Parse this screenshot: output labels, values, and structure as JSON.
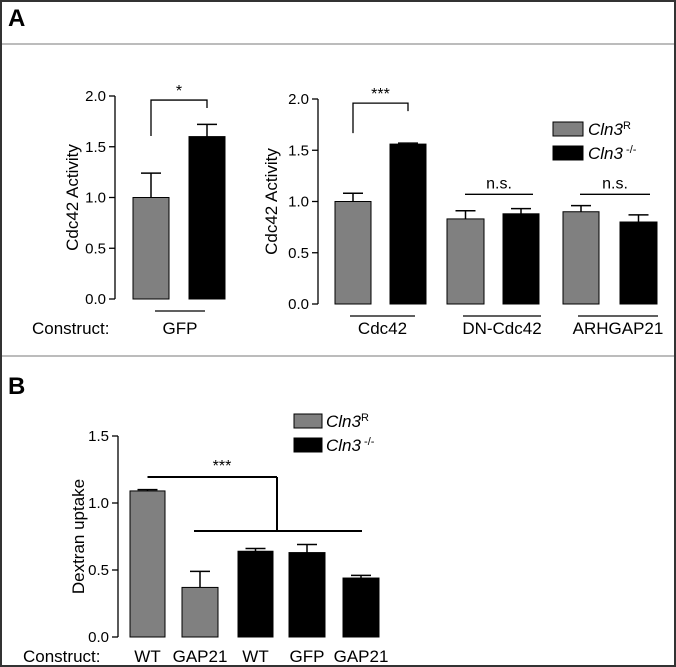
{
  "colors": {
    "frame": "#333333",
    "rule": "#7a7a7a",
    "gray_bar": "#808080",
    "black_bar": "#000000",
    "text": "#000000"
  },
  "panel_a": {
    "letter": "A",
    "construct_label": "Construct:"
  },
  "panel_b": {
    "letter": "B",
    "construct_label": "Construct:"
  },
  "legend_a": [
    {
      "gene": "Cln3",
      "sup": "R",
      "color": "#808080"
    },
    {
      "gene": "Cln3",
      "sup": " -/-",
      "color": "#000000"
    }
  ],
  "legend_b": [
    {
      "gene": "Cln3",
      "sup": "R",
      "color": "#808080"
    },
    {
      "gene": "Cln3",
      "sup": " -/-",
      "color": "#000000"
    }
  ],
  "chart_data": [
    {
      "id": "a_left",
      "type": "bar",
      "ylabel": "Cdc42 Activity",
      "ylim": [
        0,
        2.0
      ],
      "yticks": [
        "0.0",
        "0.5",
        "1.0",
        "1.5",
        "2.0"
      ],
      "series": [
        {
          "name": "Cln3R",
          "color": "#808080",
          "values": [
            1.0
          ],
          "errors": [
            0.24
          ]
        },
        {
          "name": "Cln3-/-",
          "color": "#000000",
          "values": [
            1.6
          ],
          "errors": [
            0.12
          ]
        }
      ],
      "groups": [
        "GFP"
      ],
      "significance": [
        {
          "label": "*",
          "between": [
            [
              0,
              0
            ],
            [
              1,
              0
            ]
          ],
          "y": 1.96
        }
      ]
    },
    {
      "id": "a_right",
      "type": "bar",
      "ylabel": "Cdc42 Activity",
      "ylim": [
        0,
        2.0
      ],
      "yticks": [
        "0.0",
        "0.5",
        "1.0",
        "1.5",
        "2.0"
      ],
      "series": [
        {
          "name": "Cln3R",
          "color": "#808080",
          "values": [
            1.0,
            0.83,
            0.9
          ],
          "errors": [
            0.08,
            0.08,
            0.06
          ]
        },
        {
          "name": "Cln3-/-",
          "color": "#000000",
          "values": [
            1.56,
            0.88,
            0.8
          ],
          "errors": [
            0.01,
            0.05,
            0.07
          ]
        }
      ],
      "groups": [
        "Cdc42",
        "DN-Cdc42",
        "ARHGAP21"
      ],
      "significance": [
        {
          "label": "***",
          "group": 0,
          "y": 1.96,
          "bracket": true
        },
        {
          "label": "n.s.",
          "group": 1,
          "y": 1.07,
          "bracket": false
        },
        {
          "label": "n.s.",
          "group": 2,
          "y": 1.07,
          "bracket": false
        }
      ]
    },
    {
      "id": "b",
      "type": "bar",
      "ylabel": "Dextran uptake",
      "ylim": [
        0,
        1.5
      ],
      "yticks": [
        "0.0",
        "0.5",
        "1.0",
        "1.5"
      ],
      "categories": [
        "WT",
        "GAP21",
        "WT",
        "GFP",
        "GAP21"
      ],
      "values": [
        1.09,
        0.37,
        0.64,
        0.63,
        0.44
      ],
      "errors": [
        0.01,
        0.12,
        0.02,
        0.06,
        0.02
      ],
      "colors": [
        "#808080",
        "#808080",
        "#000000",
        "#000000",
        "#000000"
      ],
      "significance": [
        {
          "label": "***"
        }
      ]
    }
  ]
}
